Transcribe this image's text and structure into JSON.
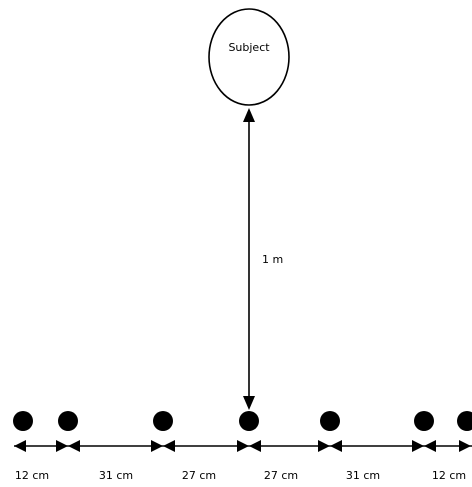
{
  "subject": {
    "label": "Subject"
  },
  "distance_label": "1 m",
  "spacing_labels": [
    "12 cm",
    "31 cm",
    "27 cm",
    "27 cm",
    "31 cm",
    "12 cm"
  ],
  "colors": {
    "stroke": "#000000",
    "background": "#ffffff"
  }
}
